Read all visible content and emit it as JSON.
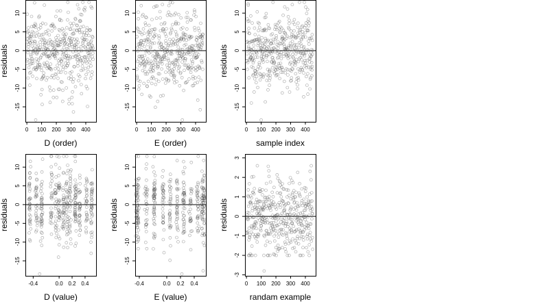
{
  "chart_data": [
    {
      "type": "scatter",
      "xlabel": "D (order)",
      "ylabel": "residuals",
      "x_ticks": [
        0,
        100,
        200,
        300,
        400
      ],
      "y_ticks": [
        -15,
        -10,
        -5,
        0,
        5,
        10
      ],
      "xlim": [
        -10,
        470
      ],
      "ylim": [
        -19,
        13.5
      ],
      "reference_line_y": 0,
      "n_points": 450,
      "x_kind": "index",
      "y_sd": 5.2,
      "min_point": {
        "x": 60,
        "y": -18.5
      }
    },
    {
      "type": "scatter",
      "xlabel": "E (order)",
      "ylabel": "residuals",
      "x_ticks": [
        0,
        100,
        200,
        300,
        400
      ],
      "y_ticks": [
        -15,
        -10,
        -5,
        0,
        5,
        10
      ],
      "xlim": [
        -10,
        470
      ],
      "ylim": [
        -19,
        13.5
      ],
      "reference_line_y": 0,
      "n_points": 450,
      "x_kind": "index",
      "y_sd": 5.2,
      "min_point": {
        "x": 310,
        "y": -18.5
      }
    },
    {
      "type": "scatter",
      "xlabel": "sample index",
      "ylabel": "residuals",
      "x_ticks": [
        0,
        100,
        200,
        300,
        400
      ],
      "y_ticks": [
        -15,
        -10,
        -5,
        0,
        5,
        10
      ],
      "xlim": [
        -10,
        470
      ],
      "ylim": [
        -19,
        13.5
      ],
      "reference_line_y": 0,
      "n_points": 450,
      "x_kind": "index",
      "y_sd": 5.2,
      "min_point": {
        "x": 100,
        "y": -18.5
      }
    },
    {
      "type": "scatter",
      "xlabel": "D (value)",
      "ylabel": "residuals",
      "x_ticks": [
        -0.4,
        0.0,
        0.2,
        0.4
      ],
      "x_tick_labels": [
        "-0.4",
        "0.0",
        "0.2",
        "0.4"
      ],
      "y_ticks": [
        -15,
        -10,
        -5,
        0,
        5,
        10
      ],
      "xlim": [
        -0.52,
        0.57
      ],
      "ylim": [
        -19,
        13.5
      ],
      "reference_line_y": 0,
      "n_points": 450,
      "x_kind": "clustered",
      "x_clusters": [
        -0.45,
        -0.35,
        -0.27,
        -0.12,
        -0.05,
        0.0,
        0.07,
        0.12,
        0.17,
        0.25,
        0.32,
        0.42,
        0.5
      ],
      "y_sd": 5.2,
      "min_point": {
        "x": -0.3,
        "y": -18.5
      }
    },
    {
      "type": "scatter",
      "xlabel": "E (value)",
      "ylabel": "residuals",
      "x_ticks": [
        -0.4,
        0.0,
        0.2,
        0.4
      ],
      "x_tick_labels": [
        "-0.4",
        "0.0",
        "0.2",
        "0.4"
      ],
      "y_ticks": [
        -15,
        -10,
        -5,
        0,
        5,
        10
      ],
      "xlim": [
        -0.46,
        0.57
      ],
      "ylim": [
        -19,
        13.5
      ],
      "reference_line_y": 0,
      "n_points": 450,
      "x_kind": "clustered",
      "x_clusters": [
        -0.44,
        -0.42,
        -0.3,
        -0.18,
        -0.05,
        0.05,
        0.15,
        0.25,
        0.35,
        0.45,
        0.52,
        0.54
      ],
      "y_sd": 5.2,
      "min_point": {
        "x": 0.22,
        "y": -18.5
      }
    },
    {
      "type": "scatter",
      "xlabel": "randam example",
      "ylabel": "residuals",
      "x_ticks": [
        0,
        100,
        200,
        300,
        400
      ],
      "y_ticks": [
        -3,
        -2,
        -1,
        0,
        1,
        2,
        3
      ],
      "xlim": [
        -10,
        470
      ],
      "ylim": [
        -3.05,
        3.2
      ],
      "reference_line_y": 0,
      "n_points": 450,
      "x_kind": "index",
      "y_sd": 1.0,
      "min_point": {
        "x": 120,
        "y": -2.8
      }
    }
  ]
}
